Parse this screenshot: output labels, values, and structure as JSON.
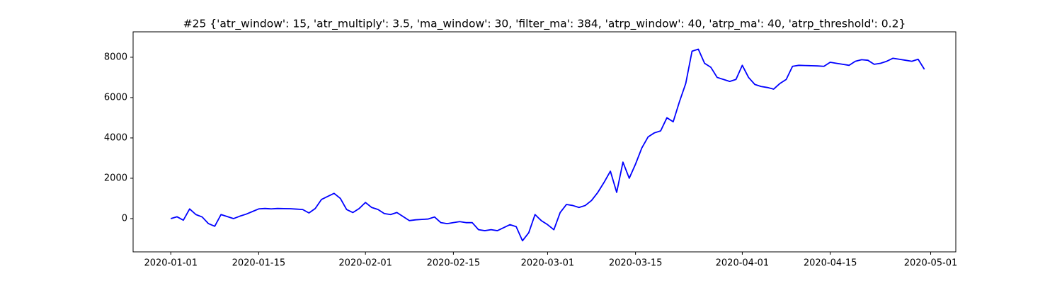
{
  "chart_data": {
    "type": "line",
    "title": "#25 {'atr_window': 15, 'atr_multiply': 3.5, 'ma_window': 30, 'filter_ma': 384, 'atrp_window': 40, 'atrp_ma': 40, 'atrp_threshold': 0.2}",
    "x": [
      "2020-01-01",
      "2020-01-02",
      "2020-01-03",
      "2020-01-04",
      "2020-01-05",
      "2020-01-06",
      "2020-01-07",
      "2020-01-08",
      "2020-01-09",
      "2020-01-10",
      "2020-01-11",
      "2020-01-12",
      "2020-01-13",
      "2020-01-14",
      "2020-01-15",
      "2020-01-16",
      "2020-01-17",
      "2020-01-18",
      "2020-01-19",
      "2020-01-20",
      "2020-01-21",
      "2020-01-22",
      "2020-01-23",
      "2020-01-24",
      "2020-01-25",
      "2020-01-26",
      "2020-01-27",
      "2020-01-28",
      "2020-01-29",
      "2020-01-30",
      "2020-01-31",
      "2020-02-01",
      "2020-02-02",
      "2020-02-03",
      "2020-02-04",
      "2020-02-05",
      "2020-02-06",
      "2020-02-07",
      "2020-02-08",
      "2020-02-09",
      "2020-02-10",
      "2020-02-11",
      "2020-02-12",
      "2020-02-13",
      "2020-02-14",
      "2020-02-15",
      "2020-02-16",
      "2020-02-17",
      "2020-02-18",
      "2020-02-19",
      "2020-02-20",
      "2020-02-21",
      "2020-02-22",
      "2020-02-23",
      "2020-02-24",
      "2020-02-25",
      "2020-02-26",
      "2020-02-27",
      "2020-02-28",
      "2020-02-29",
      "2020-03-01",
      "2020-03-02",
      "2020-03-03",
      "2020-03-04",
      "2020-03-05",
      "2020-03-06",
      "2020-03-07",
      "2020-03-08",
      "2020-03-09",
      "2020-03-10",
      "2020-03-11",
      "2020-03-12",
      "2020-03-13",
      "2020-03-14",
      "2020-03-15",
      "2020-03-16",
      "2020-03-17",
      "2020-03-18",
      "2020-03-19",
      "2020-03-20",
      "2020-03-21",
      "2020-03-22",
      "2020-03-23",
      "2020-03-24",
      "2020-03-25",
      "2020-03-26",
      "2020-03-27",
      "2020-03-28",
      "2020-03-29",
      "2020-03-30",
      "2020-03-31",
      "2020-04-01",
      "2020-04-02",
      "2020-04-03",
      "2020-04-04",
      "2020-04-05",
      "2020-04-06",
      "2020-04-07",
      "2020-04-08",
      "2020-04-09",
      "2020-04-10",
      "2020-04-11",
      "2020-04-12",
      "2020-04-13",
      "2020-04-14",
      "2020-04-15",
      "2020-04-16",
      "2020-04-17",
      "2020-04-18",
      "2020-04-19",
      "2020-04-20",
      "2020-04-21",
      "2020-04-22",
      "2020-04-23",
      "2020-04-24",
      "2020-04-25",
      "2020-04-26",
      "2020-04-27",
      "2020-04-28",
      "2020-04-29",
      "2020-04-30"
    ],
    "series": [
      {
        "color": "#0000ff",
        "values": [
          0,
          90,
          -80,
          480,
          200,
          80,
          -250,
          -380,
          200,
          100,
          0,
          120,
          220,
          350,
          480,
          500,
          480,
          500,
          495,
          490,
          470,
          450,
          280,
          500,
          950,
          1100,
          1250,
          1000,
          450,
          300,
          500,
          800,
          550,
          450,
          250,
          200,
          300,
          100,
          -100,
          -60,
          -40,
          -20,
          80,
          -200,
          -250,
          -200,
          -150,
          -200,
          -200,
          -550,
          -600,
          -550,
          -600,
          -450,
          -300,
          -400,
          -1100,
          -700,
          200,
          -100,
          -300,
          -550,
          300,
          700,
          650,
          550,
          650,
          900,
          1300,
          1800,
          2350,
          1300,
          2800,
          2000,
          2700,
          3500,
          4050,
          4250,
          4350,
          5000,
          4800,
          5800,
          6700,
          8300,
          8400,
          7700,
          7500,
          7000,
          6900,
          6800,
          6900,
          7600,
          7000,
          6650,
          6550,
          6500,
          6420,
          6700,
          6900,
          7550,
          7600,
          7590,
          7580,
          7570,
          7550,
          7750,
          7700,
          7650,
          7600,
          7800,
          7880,
          7850,
          7650,
          7700,
          7800,
          7950,
          7900,
          7850,
          7800,
          7900,
          7400
        ]
      }
    ],
    "xlim": [
      "2019-12-26",
      "2020-05-05"
    ],
    "xticks": [
      "2020-01-01",
      "2020-01-15",
      "2020-02-01",
      "2020-02-15",
      "2020-03-01",
      "2020-03-15",
      "2020-04-01",
      "2020-04-15",
      "2020-05-01"
    ],
    "ylim": [
      -1650,
      9260
    ],
    "yticks": [
      0,
      2000,
      4000,
      6000,
      8000
    ]
  }
}
